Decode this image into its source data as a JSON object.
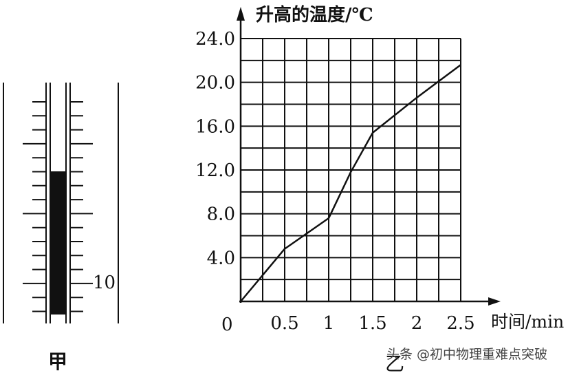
{
  "thermometer": {
    "caption": "甲",
    "scale_label": "10"
  },
  "chart_caption": "乙",
  "watermark": "头条 @初中物理重难点突破",
  "chart_data": {
    "type": "line",
    "ylabel": "升高的温度/℃",
    "xlabel": "时间/min",
    "origin_label": "0",
    "xlim": [
      0,
      2.5
    ],
    "ylim": [
      0,
      24
    ],
    "x_ticks": [
      "0.5",
      "1",
      "1.5",
      "2",
      "2.5"
    ],
    "y_ticks": [
      "4.0",
      "8.0",
      "12.0",
      "16.0",
      "20.0",
      "24.0"
    ],
    "grid": true,
    "series": [
      {
        "x": [
          0,
          0.5,
          1.0,
          1.25,
          1.5,
          2.0,
          2.5
        ],
        "y": [
          0,
          4.8,
          7.6,
          11.8,
          15.4,
          18.6,
          21.6
        ]
      }
    ]
  }
}
